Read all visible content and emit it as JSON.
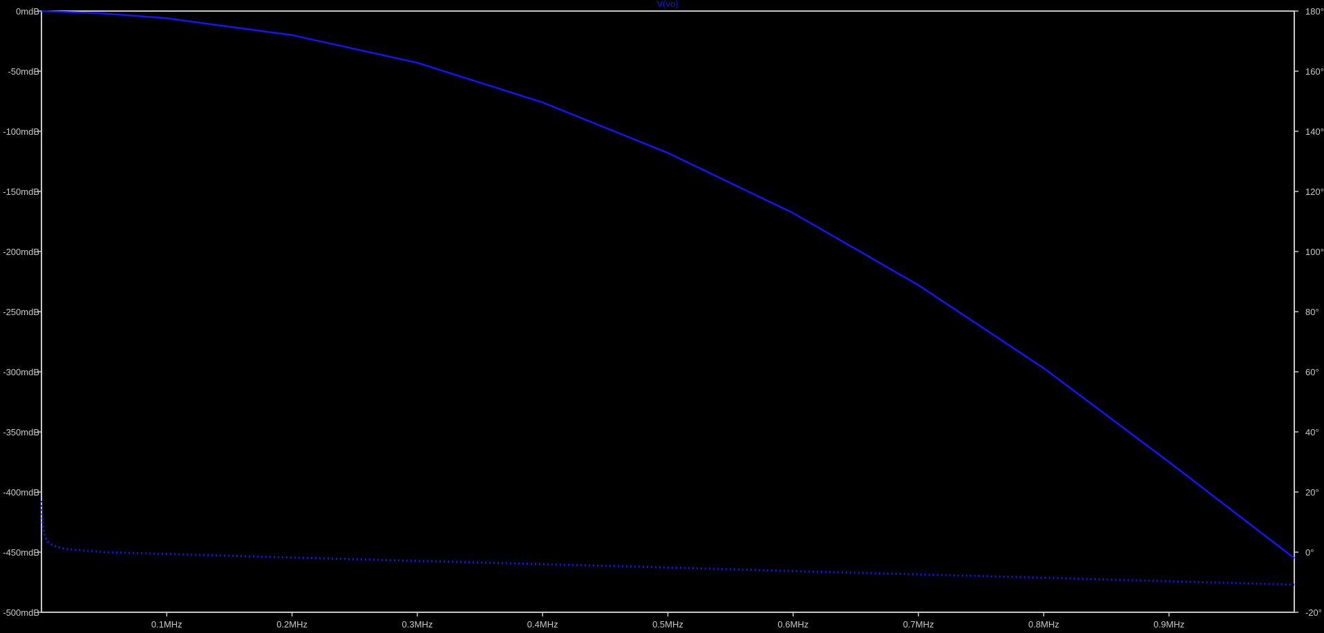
{
  "chart_data": {
    "type": "line",
    "title": "V(vo)",
    "colors": {
      "background": "#000000",
      "axis": "#c8c8c8",
      "trace": "#1414ff",
      "title": "#1414ff"
    },
    "x_axis": {
      "unit": "MHz",
      "range": [
        0,
        1.0
      ],
      "ticks": [
        {
          "value": 0.1,
          "label": "0.1MHz"
        },
        {
          "value": 0.2,
          "label": "0.2MHz"
        },
        {
          "value": 0.3,
          "label": "0.3MHz"
        },
        {
          "value": 0.4,
          "label": "0.4MHz"
        },
        {
          "value": 0.5,
          "label": "0.5MHz"
        },
        {
          "value": 0.6,
          "label": "0.6MHz"
        },
        {
          "value": 0.7,
          "label": "0.7MHz"
        },
        {
          "value": 0.8,
          "label": "0.8MHz"
        },
        {
          "value": 0.9,
          "label": "0.9MHz"
        }
      ]
    },
    "y_left": {
      "unit": "mdB",
      "range": [
        -500,
        0
      ],
      "ticks": [
        {
          "value": 0,
          "label": "0mdB"
        },
        {
          "value": -50,
          "label": "-50mdB"
        },
        {
          "value": -100,
          "label": "-100mdB"
        },
        {
          "value": -150,
          "label": "-150mdB"
        },
        {
          "value": -200,
          "label": "-200mdB"
        },
        {
          "value": -250,
          "label": "-250mdB"
        },
        {
          "value": -300,
          "label": "-300mdB"
        },
        {
          "value": -350,
          "label": "-350mdB"
        },
        {
          "value": -400,
          "label": "-400mdB"
        },
        {
          "value": -450,
          "label": "-450mdB"
        },
        {
          "value": -500,
          "label": "-500mdB"
        }
      ]
    },
    "y_right": {
      "unit": "deg",
      "range": [
        -20,
        180
      ],
      "ticks": [
        {
          "value": 180,
          "label": "180°"
        },
        {
          "value": 160,
          "label": "160°"
        },
        {
          "value": 140,
          "label": "140°"
        },
        {
          "value": 120,
          "label": "120°"
        },
        {
          "value": 100,
          "label": "100°"
        },
        {
          "value": 80,
          "label": "80°"
        },
        {
          "value": 60,
          "label": "60°"
        },
        {
          "value": 40,
          "label": "40°"
        },
        {
          "value": 20,
          "label": "20°"
        },
        {
          "value": 0,
          "label": "0°"
        },
        {
          "value": -20,
          "label": "-20°"
        }
      ]
    },
    "series": [
      {
        "axis": "left",
        "style": "solid",
        "x": [
          0.0,
          0.05,
          0.1,
          0.2,
          0.3,
          0.4,
          0.5,
          0.6,
          0.7,
          0.8,
          0.9,
          1.0
        ],
        "y": [
          0,
          -2,
          -6,
          -20,
          -43,
          -76,
          -118,
          -168,
          -228,
          -297,
          -375,
          -455
        ]
      },
      {
        "axis": "right",
        "style": "dotted",
        "x": [
          0.0,
          0.0005,
          0.001,
          0.002,
          0.003,
          0.005,
          0.01,
          0.02,
          0.05,
          0.1,
          0.2,
          0.3,
          0.4,
          0.5,
          0.6,
          0.7,
          0.8,
          0.9,
          1.0
        ],
        "y": [
          17,
          13,
          10,
          7,
          5,
          3.5,
          2,
          1,
          0,
          -0.6,
          -1.8,
          -2.9,
          -4.0,
          -5.1,
          -6.3,
          -7.4,
          -8.5,
          -9.7,
          -10.8
        ]
      }
    ]
  }
}
